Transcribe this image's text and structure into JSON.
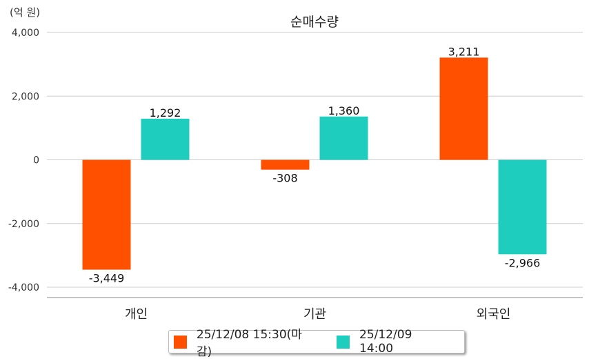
{
  "chart_data": {
    "type": "bar",
    "title": "순매수량",
    "unit_label": "(억 원)",
    "categories": [
      "개인",
      "기관",
      "외국인"
    ],
    "series": [
      {
        "name": "25/12/08 15:30(마감)",
        "color": "#ff5000",
        "values": [
          -3449,
          -308,
          3211
        ],
        "labels": [
          "-3,449",
          "-308",
          "3,211"
        ]
      },
      {
        "name": "25/12/09 14:00",
        "color": "#1ecdbd",
        "values": [
          1292,
          1360,
          -2966
        ],
        "labels": [
          "1,292",
          "1,360",
          "-2,966"
        ]
      }
    ],
    "yticks": [
      4000,
      2000,
      0,
      -2000,
      -4000
    ],
    "ytick_labels": [
      "4,000",
      "2,000",
      "0",
      "-2,000",
      "-4,000"
    ],
    "ylim": [
      -4000,
      4000
    ],
    "grid": true,
    "legend_position": "bottom"
  }
}
